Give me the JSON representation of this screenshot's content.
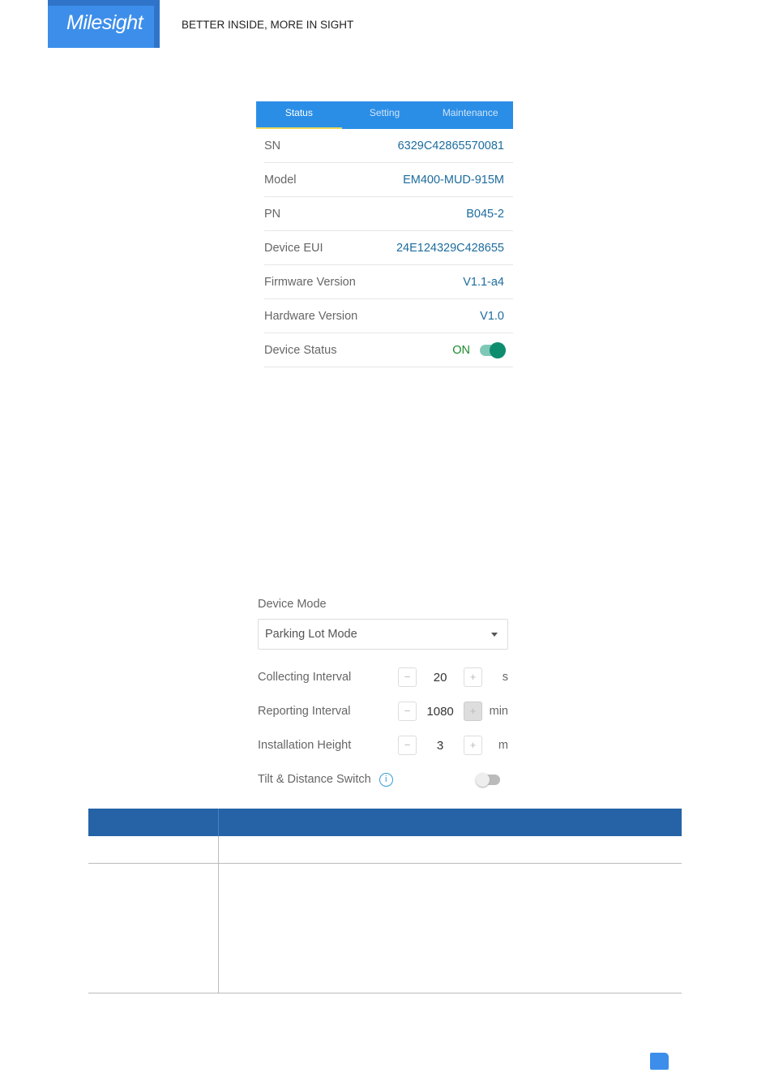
{
  "header": {
    "logo": "Milesight",
    "tagline": "BETTER INSIDE, MORE IN SIGHT"
  },
  "status_screen": {
    "tabs": [
      {
        "label": "Status"
      },
      {
        "label": "Setting"
      },
      {
        "label": "Maintenance"
      }
    ],
    "rows": [
      {
        "key": "SN",
        "value": "6329C42865570081"
      },
      {
        "key": "Model",
        "value": "EM400-MUD-915M"
      },
      {
        "key": "PN",
        "value": "B045-2"
      },
      {
        "key": "Device EUI",
        "value": "24E124329C428655"
      },
      {
        "key": "Firmware Version",
        "value": "V1.1-a4"
      },
      {
        "key": "Hardware Version",
        "value": "V1.0"
      }
    ],
    "device_status": {
      "key": "Device Status",
      "value": "ON",
      "enabled": true
    }
  },
  "setting_screen": {
    "device_mode_label": "Device Mode",
    "device_mode_value": "Parking Lot Mode",
    "steppers": [
      {
        "label": "Collecting Interval",
        "value": "20",
        "unit": "s",
        "minus": "−",
        "plus": "+"
      },
      {
        "label": "Reporting Interval",
        "value": "1080",
        "unit": "min",
        "minus": "−",
        "plus": "+"
      },
      {
        "label": "Installation Height",
        "value": "3",
        "unit": "m",
        "minus": "−",
        "plus": "+"
      }
    ],
    "tilt_switch": {
      "label": "Tilt & Distance Switch",
      "info": "i",
      "enabled": false
    }
  },
  "colors": {
    "brand": "#3d8eea",
    "table_header": "#2563a6",
    "tab_bar": "#2b8ee6"
  }
}
